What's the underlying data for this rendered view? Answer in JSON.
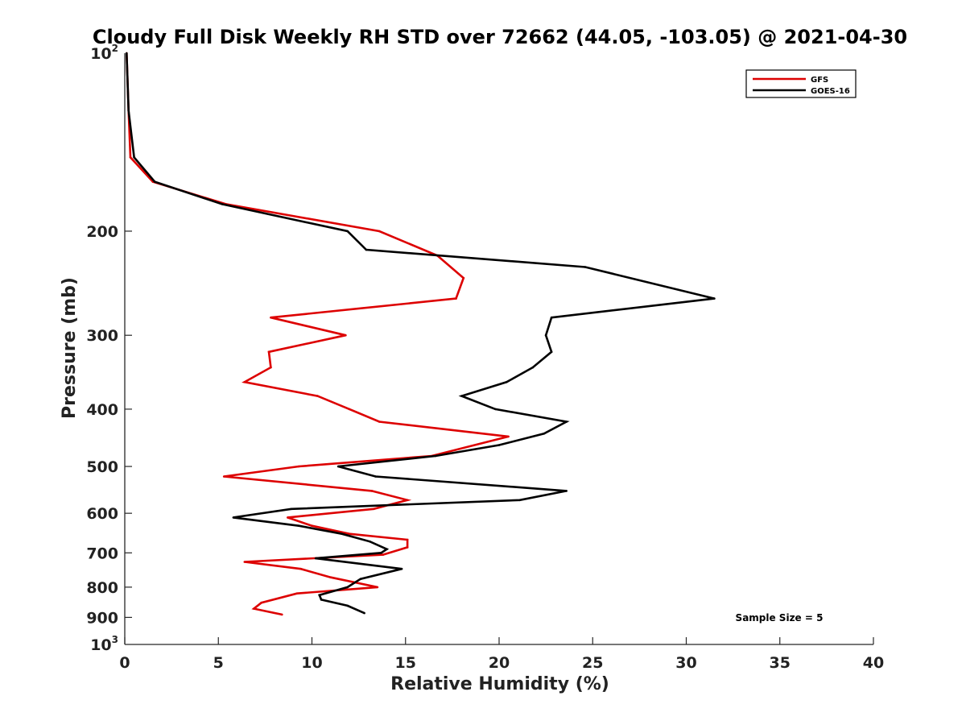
{
  "chart_data": {
    "type": "line",
    "title": "Cloudy Full Disk Weekly RH STD over 72662 (44.05, -103.05) @ 2021-04-30",
    "xlabel": "Relative Humidity (%)",
    "ylabel": "Pressure (mb)",
    "xlim": [
      0,
      40
    ],
    "ylim": [
      100,
      1000
    ],
    "yscale": "log",
    "y_reversed": true,
    "grid": false,
    "x_ticks": [
      {
        "value": 0,
        "label": "0"
      },
      {
        "value": 5,
        "label": "5"
      },
      {
        "value": 10,
        "label": "10"
      },
      {
        "value": 15,
        "label": "15"
      },
      {
        "value": 20,
        "label": "20"
      },
      {
        "value": 25,
        "label": "25"
      },
      {
        "value": 30,
        "label": "30"
      },
      {
        "value": 35,
        "label": "35"
      },
      {
        "value": 40,
        "label": "40"
      }
    ],
    "y_ticks": [
      {
        "value": 100,
        "base": "10",
        "exp": "2"
      },
      {
        "value": 200,
        "label": "200"
      },
      {
        "value": 300,
        "label": "300"
      },
      {
        "value": 400,
        "label": "400"
      },
      {
        "value": 500,
        "label": "500"
      },
      {
        "value": 600,
        "label": "600"
      },
      {
        "value": 700,
        "label": "700"
      },
      {
        "value": 800,
        "label": "800"
      },
      {
        "value": 900,
        "label": "900"
      },
      {
        "value": 1000,
        "base": "10",
        "exp": "3"
      }
    ],
    "legend_position": "top-right",
    "annotation": "Sample Size = 5",
    "series": [
      {
        "name": "GFS",
        "color": "#dd0000",
        "points": [
          [
            0.1,
            100
          ],
          [
            0.2,
            125
          ],
          [
            0.3,
            150
          ],
          [
            1.5,
            165
          ],
          [
            5.4,
            180
          ],
          [
            13.6,
            200
          ],
          [
            16.7,
            220
          ],
          [
            18.1,
            240
          ],
          [
            17.7,
            260
          ],
          [
            7.8,
            280
          ],
          [
            11.8,
            300
          ],
          [
            7.7,
            320
          ],
          [
            7.8,
            340
          ],
          [
            6.4,
            360
          ],
          [
            10.3,
            380
          ],
          [
            12.0,
            400
          ],
          [
            13.6,
            420
          ],
          [
            20.5,
            445
          ],
          [
            16.4,
            480
          ],
          [
            9.3,
            500
          ],
          [
            5.3,
            520
          ],
          [
            13.2,
            550
          ],
          [
            15.1,
            570
          ],
          [
            13.3,
            590
          ],
          [
            8.7,
            610
          ],
          [
            10.0,
            630
          ],
          [
            12.0,
            650
          ],
          [
            15.1,
            665
          ],
          [
            15.1,
            685
          ],
          [
            13.8,
            705
          ],
          [
            6.4,
            725
          ],
          [
            9.4,
            745
          ],
          [
            11.0,
            770
          ],
          [
            13.5,
            800
          ],
          [
            9.2,
            820
          ],
          [
            7.3,
            850
          ],
          [
            6.9,
            870
          ],
          [
            8.4,
            890
          ]
        ]
      },
      {
        "name": "GOES-16",
        "color": "#000000",
        "points": [
          [
            0.1,
            100
          ],
          [
            0.2,
            125
          ],
          [
            0.5,
            150
          ],
          [
            1.6,
            165
          ],
          [
            5.2,
            180
          ],
          [
            11.9,
            200
          ],
          [
            12.9,
            215
          ],
          [
            24.6,
            230
          ],
          [
            31.5,
            260
          ],
          [
            22.8,
            280
          ],
          [
            22.5,
            300
          ],
          [
            22.8,
            320
          ],
          [
            21.8,
            340
          ],
          [
            20.4,
            360
          ],
          [
            18.0,
            380
          ],
          [
            19.8,
            400
          ],
          [
            23.6,
            420
          ],
          [
            22.4,
            440
          ],
          [
            20.0,
            460
          ],
          [
            16.6,
            480
          ],
          [
            11.4,
            500
          ],
          [
            13.4,
            520
          ],
          [
            23.6,
            550
          ],
          [
            21.1,
            570
          ],
          [
            8.9,
            590
          ],
          [
            5.8,
            610
          ],
          [
            9.3,
            630
          ],
          [
            11.6,
            650
          ],
          [
            13.1,
            670
          ],
          [
            14.0,
            690
          ],
          [
            13.7,
            700
          ],
          [
            10.2,
            715
          ],
          [
            14.8,
            745
          ],
          [
            12.6,
            775
          ],
          [
            11.9,
            800
          ],
          [
            10.4,
            825
          ],
          [
            10.5,
            840
          ],
          [
            11.9,
            860
          ],
          [
            12.8,
            885
          ]
        ]
      }
    ]
  }
}
